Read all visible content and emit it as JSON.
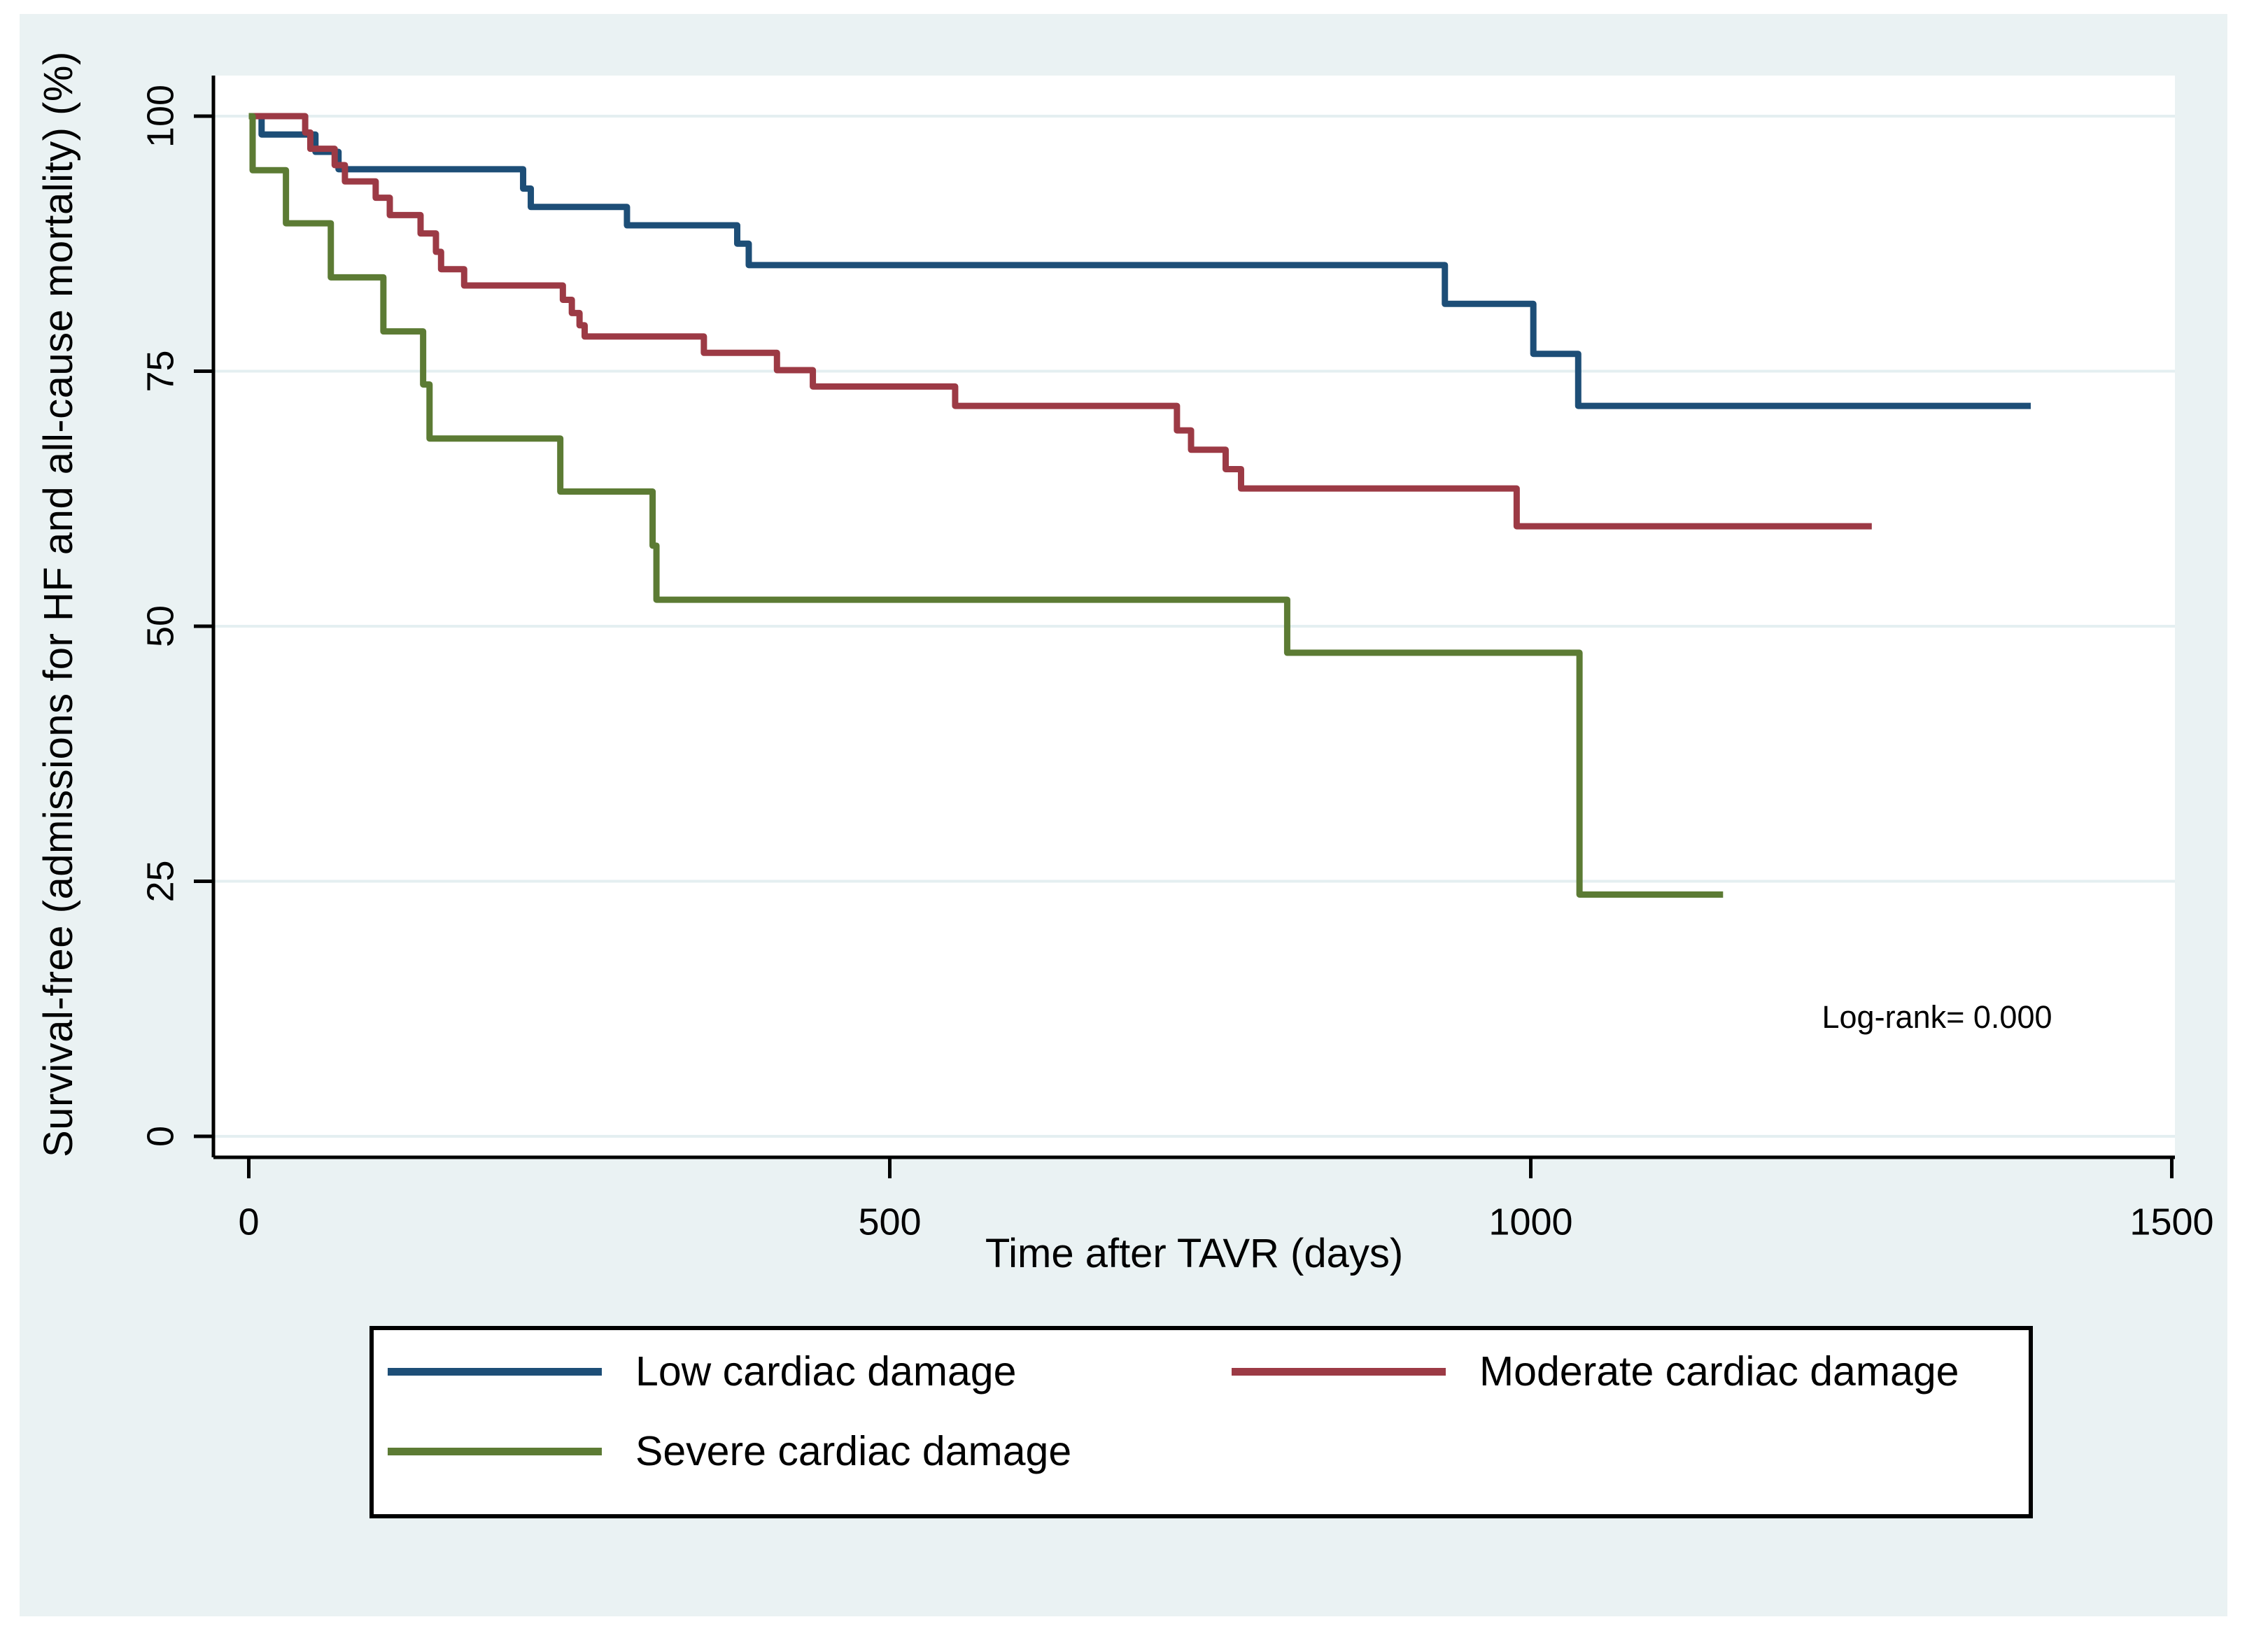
{
  "figure": {
    "canvas_color": "#eaf2f3",
    "plot_background": "#ffffff",
    "gridline_color": "#e4eff1",
    "axis_color": "#000000"
  },
  "chart_data": {
    "type": "line",
    "subtype": "kaplan-meier-step",
    "title": "",
    "xlabel": "Time after TAVR (days)",
    "ylabel": "Survival-free (admissions for HF and all-cause mortality) (%)",
    "annotation": "Log-rank= 0.000",
    "xlim": [
      0,
      1502
    ],
    "ylim": [
      0,
      100
    ],
    "x_ticks": [
      0,
      500,
      1000,
      1500
    ],
    "y_ticks": [
      0,
      25,
      50,
      75,
      100
    ],
    "grid": "horizontal",
    "legend_position": "bottom",
    "series": [
      {
        "name": "Low cardiac damage",
        "color": "#1d4e77",
        "end_day": 1390,
        "points": [
          [
            0,
            100
          ],
          [
            10,
            98.2
          ],
          [
            52,
            96.5
          ],
          [
            70,
            94.8
          ],
          [
            214,
            92.9
          ],
          [
            220,
            91.1
          ],
          [
            295,
            89.3
          ],
          [
            381,
            87.5
          ],
          [
            390,
            85.4
          ],
          [
            933,
            81.6
          ],
          [
            1002,
            76.7
          ],
          [
            1037,
            71.6
          ]
        ]
      },
      {
        "name": "Moderate cardiac damage",
        "color": "#9c3a45",
        "end_day": 1266,
        "points": [
          [
            0,
            100
          ],
          [
            44,
            98.4
          ],
          [
            48,
            96.8
          ],
          [
            67,
            95.2
          ],
          [
            75,
            93.6
          ],
          [
            99,
            92.0
          ],
          [
            110,
            90.3
          ],
          [
            134,
            88.5
          ],
          [
            146,
            86.7
          ],
          [
            150,
            85.0
          ],
          [
            168,
            83.4
          ],
          [
            245,
            82.0
          ],
          [
            252,
            80.7
          ],
          [
            258,
            79.5
          ],
          [
            262,
            78.4
          ],
          [
            355,
            76.8
          ],
          [
            412,
            75.1
          ],
          [
            440,
            73.5
          ],
          [
            551,
            71.6
          ],
          [
            724,
            69.2
          ],
          [
            735,
            67.3
          ],
          [
            762,
            65.4
          ],
          [
            774,
            63.5
          ],
          [
            989,
            59.8
          ]
        ]
      },
      {
        "name": "Severe cardiac damage",
        "color": "#5c7b34",
        "end_day": 1150,
        "points": [
          [
            0,
            100
          ],
          [
            3,
            94.7
          ],
          [
            29,
            89.5
          ],
          [
            64,
            84.2
          ],
          [
            105,
            78.9
          ],
          [
            136,
            73.7
          ],
          [
            141,
            68.4
          ],
          [
            243,
            63.2
          ],
          [
            315,
            57.9
          ],
          [
            318,
            52.6
          ],
          [
            810,
            47.4
          ],
          [
            1038,
            23.7
          ]
        ]
      }
    ]
  }
}
